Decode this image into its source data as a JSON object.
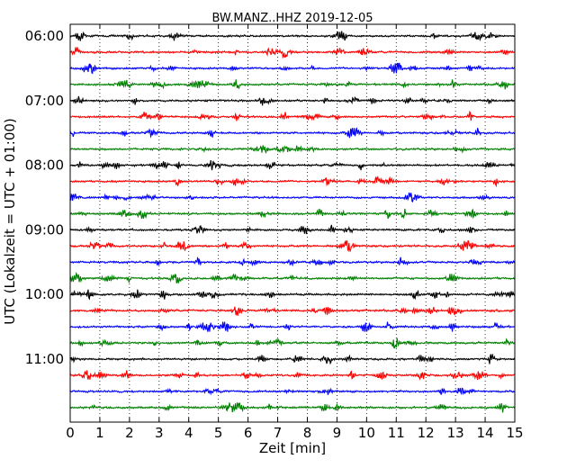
{
  "chart_data": {
    "type": "line",
    "title": "BW.MANZ..HHZ 2019-12-05",
    "xlabel": "Zeit  [min]",
    "ylabel": "UTC (Lokalzeit = UTC + 01:00)",
    "xlim": [
      0,
      15
    ],
    "x_ticks": [
      "0",
      "1",
      "2",
      "3",
      "4",
      "5",
      "6",
      "7",
      "8",
      "9",
      "10",
      "11",
      "12",
      "13",
      "14",
      "15"
    ],
    "y_ticks": [
      "06:00",
      "07:00",
      "08:00",
      "09:00",
      "10:00",
      "11:00"
    ],
    "start_time": "06:00",
    "row_minutes": 15,
    "row_count": 24,
    "colors": [
      "#000000",
      "#ff0000",
      "#0000ff",
      "#008000"
    ],
    "grid": "vertical dotted"
  }
}
